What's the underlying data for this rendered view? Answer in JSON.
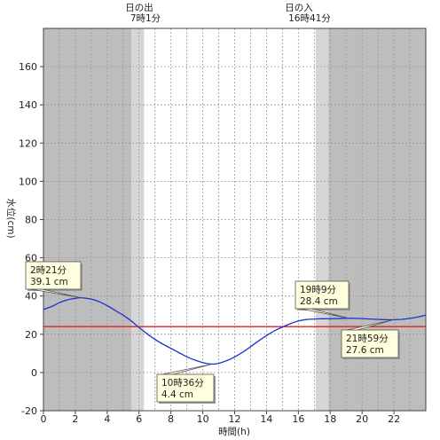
{
  "chart_data": {
    "type": "line",
    "xlabel": "時間(h)",
    "ylabel": "水位(cm)",
    "xlim": [
      0,
      24
    ],
    "ylim": [
      -20,
      180
    ],
    "x_ticks": [
      0,
      2,
      4,
      6,
      8,
      10,
      12,
      14,
      16,
      18,
      20,
      22
    ],
    "y_ticks": [
      -20,
      0,
      20,
      40,
      60,
      80,
      100,
      120,
      140,
      160
    ],
    "sunrise": {
      "label": "日の出",
      "time": "7時1分",
      "hour": 7.017
    },
    "sunset": {
      "label": "日の入",
      "time": "16時41分",
      "hour": 16.683
    },
    "reference_level": 24,
    "series": [
      {
        "x": [
          0,
          0.5,
          1,
          1.5,
          2,
          2.35,
          3,
          3.5,
          4,
          4.5,
          5,
          5.5,
          6,
          6.5,
          7,
          7.5,
          8,
          8.5,
          9,
          9.5,
          10,
          10.6,
          11,
          11.5,
          12,
          12.5,
          13,
          13.5,
          14,
          14.5,
          15,
          15.5,
          16,
          16.5,
          17,
          17.5,
          18,
          18.5,
          19.15,
          19.5,
          20,
          20.5,
          21,
          21.5,
          21.98,
          22.5,
          23,
          23.5,
          24
        ],
        "y": [
          33,
          34.5,
          36.5,
          38,
          38.8,
          39.1,
          38.4,
          37,
          35,
          32.5,
          30,
          27,
          23.5,
          20.3,
          17.3,
          14.8,
          12.6,
          10.4,
          8.2,
          6.5,
          5.2,
          4.4,
          4.8,
          6.2,
          8.1,
          10.6,
          13.5,
          16.5,
          19.3,
          21.8,
          23.8,
          25.5,
          26.9,
          27.7,
          28.0,
          28.1,
          28.1,
          28.2,
          28.4,
          28.3,
          28.2,
          28.0,
          27.8,
          27.6,
          27.6,
          27.8,
          28.3,
          29.0,
          30.0
        ]
      }
    ],
    "annotations": [
      {
        "time": "2時21分",
        "value": "39.1 cm",
        "hour": 2.35,
        "level": 39.1
      },
      {
        "time": "10時36分",
        "value": "4.4 cm",
        "hour": 10.6,
        "level": 4.4
      },
      {
        "time": "19時9分",
        "value": "28.4 cm",
        "hour": 19.15,
        "level": 28.4
      },
      {
        "time": "21時59分",
        "value": "27.6 cm",
        "hour": 21.98,
        "level": 27.6
      }
    ],
    "colors": {
      "night": "#bdbdbd",
      "twilight": "#d6d6d6",
      "day": "#ffffff",
      "line": "#1f2fd0",
      "reference": "#e02020",
      "callout_bg": "#ffffdd",
      "grid": "#9a9a9a"
    }
  }
}
